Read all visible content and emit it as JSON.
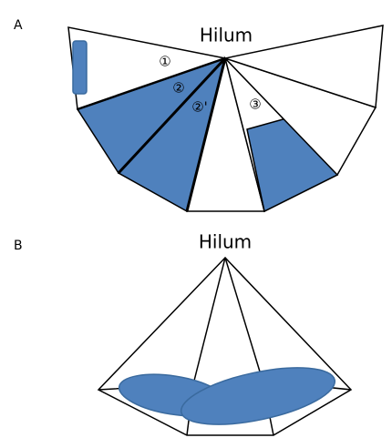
{
  "panel_a": {
    "label": "A",
    "title": "Hilum",
    "markers": [
      "①",
      "②",
      "②'",
      "③"
    ]
  },
  "panel_b": {
    "label": "B",
    "title": "Hilum"
  }
}
